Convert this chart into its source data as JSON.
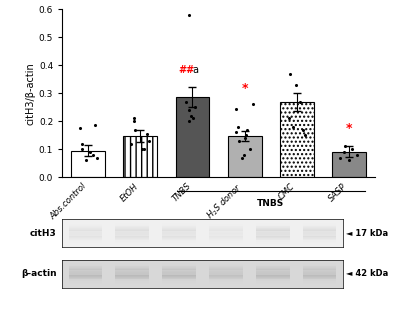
{
  "categories": [
    "Abs.control",
    "EtOH",
    "TNBS",
    "H₂S donor",
    "CMC",
    "SASP"
  ],
  "bar_heights": [
    0.095,
    0.148,
    0.287,
    0.148,
    0.27,
    0.092
  ],
  "error_bars": [
    0.02,
    0.022,
    0.035,
    0.018,
    0.032,
    0.018
  ],
  "bar_colors": [
    "white",
    "white",
    "#555555",
    "#b0b0b0",
    "white",
    "#888888"
  ],
  "bar_hatches": [
    "",
    "|||",
    "",
    "",
    "....",
    ""
  ],
  "bar_edgecolors": [
    "black",
    "black",
    "black",
    "black",
    "black",
    "black"
  ],
  "ylabel": "citH3/β-actin",
  "ylim": [
    0.0,
    0.6
  ],
  "yticks": [
    0.0,
    0.1,
    0.2,
    0.3,
    0.4,
    0.5,
    0.6
  ],
  "scatter_data": {
    "Abs.control": [
      0.06,
      0.07,
      0.08,
      0.09,
      0.1,
      0.12,
      0.175,
      0.185
    ],
    "EtOH": [
      0.1,
      0.1,
      0.12,
      0.13,
      0.155,
      0.17,
      0.2,
      0.21
    ],
    "TNBS": [
      0.2,
      0.21,
      0.22,
      0.24,
      0.25,
      0.27,
      0.58
    ],
    "H2S donor": [
      0.07,
      0.08,
      0.1,
      0.13,
      0.14,
      0.15,
      0.16,
      0.17,
      0.18,
      0.245,
      0.26
    ],
    "CMC": [
      0.15,
      0.17,
      0.18,
      0.21,
      0.27,
      0.33,
      0.37
    ],
    "SASP": [
      0.06,
      0.07,
      0.08,
      0.09,
      0.1,
      0.11
    ]
  },
  "western_blot": {
    "bands_row1_label": "citH3",
    "bands_row1_kda": "17 kDa",
    "bands_row2_label": "β-actin",
    "bands_row2_kda": "42 kDa",
    "band_intensities_row1": [
      0.45,
      0.6,
      0.55,
      0.35,
      0.75,
      0.65
    ],
    "band_intensities_row2": [
      0.7,
      0.75,
      0.72,
      0.55,
      0.7,
      0.68
    ],
    "box_facecolor_row1": "#f0f0f0",
    "box_facecolor_row2": "#d8d8d8",
    "band_color_row1": "#5a5a5a",
    "band_color_row2": "#3a3a3a"
  },
  "label_texts": [
    "Abs.control",
    "EtOH",
    "TNBS",
    "H$_2$S donor",
    "CMC",
    "SASP"
  ],
  "tnbs_bracket_label": "TNBS",
  "annot_tnbs_hash": "##",
  "annot_tnbs_a": "a",
  "annot_star": "*"
}
